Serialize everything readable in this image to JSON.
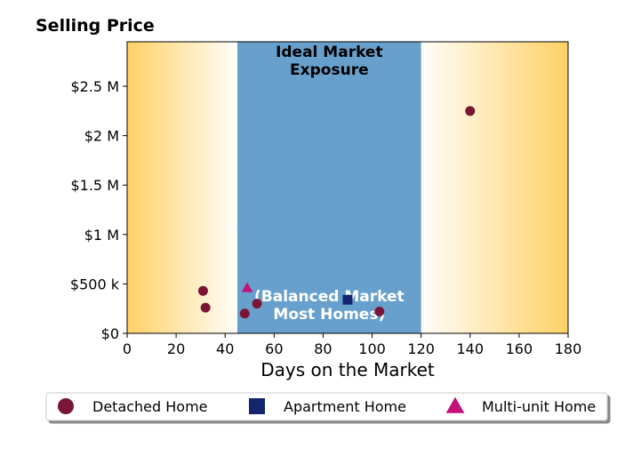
{
  "chart_data": {
    "type": "scatter",
    "ylabel": "Selling Price",
    "xlabel": "Days on the Market",
    "xlim": [
      0,
      180
    ],
    "ylim": [
      0,
      2950000
    ],
    "x_ticks": [
      0,
      20,
      40,
      60,
      80,
      100,
      120,
      140,
      160,
      180
    ],
    "y_ticks": [
      {
        "value": 0,
        "label": "$0"
      },
      {
        "value": 500000,
        "label": "$500 k"
      },
      {
        "value": 1000000,
        "label": "$1 M"
      },
      {
        "value": 1500000,
        "label": "$1.5 M"
      },
      {
        "value": 2000000,
        "label": "$2 M"
      },
      {
        "value": 2500000,
        "label": "$2.5 M"
      }
    ],
    "grid": false,
    "background_zones": [
      {
        "from": 0,
        "to": 45,
        "fill": "gradient",
        "color": "#ffd166"
      },
      {
        "from": 45,
        "to": 120,
        "fill": "solid",
        "color": "#67a0cc",
        "title_lines": [
          "Ideal Market",
          "Exposure"
        ],
        "subtitle_lines": [
          "(Balanced Market",
          "Most Homes)"
        ]
      },
      {
        "from": 120,
        "to": 180,
        "fill": "gradient",
        "color": "#ffd166"
      }
    ],
    "series": [
      {
        "name": "Detached Home",
        "marker": "circle",
        "color": "#7b1535",
        "points": [
          [
            31,
            430000
          ],
          [
            32,
            260000
          ],
          [
            48,
            200000
          ],
          [
            53,
            300000
          ],
          [
            103,
            220000
          ],
          [
            140,
            2250000
          ]
        ]
      },
      {
        "name": "Apartment Home",
        "marker": "square",
        "color": "#13256f",
        "points": [
          [
            90,
            340000
          ]
        ]
      },
      {
        "name": "Multi-unit Home",
        "marker": "triangle",
        "color": "#c2127a",
        "points": [
          [
            49,
            460000
          ]
        ]
      }
    ],
    "legend": {
      "position": "bottom",
      "columns": 3
    }
  }
}
